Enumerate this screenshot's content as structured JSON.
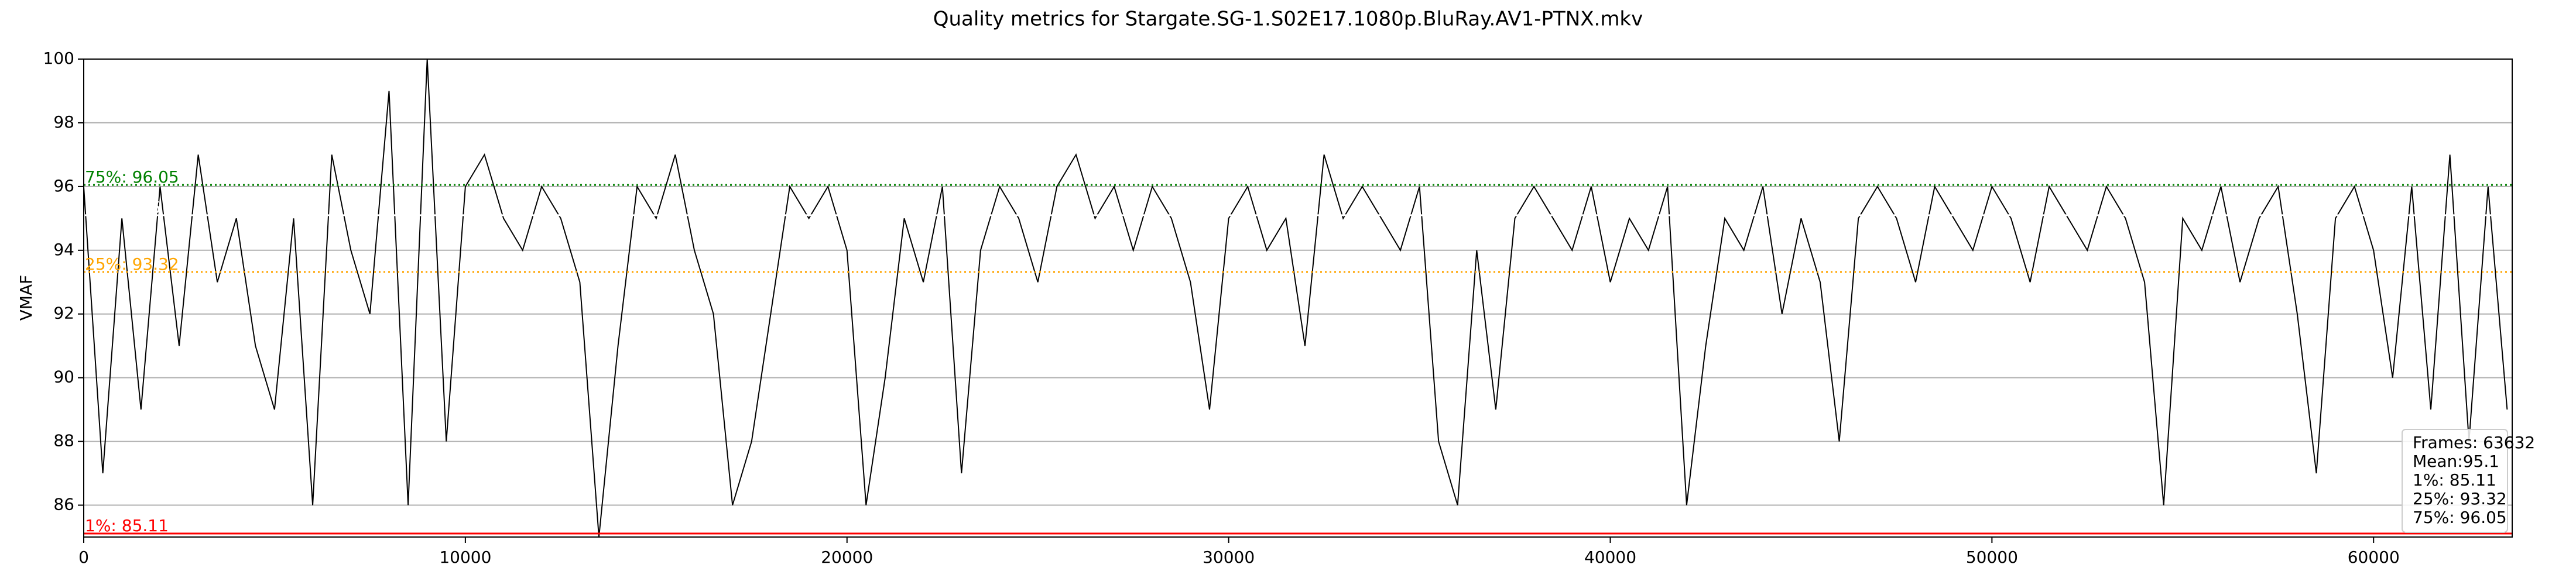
{
  "chart_data": {
    "type": "line",
    "title": "Quality metrics for Stargate.SG-1.S02E17.1080p.BluRay.AV1-PTNX.mkv",
    "ylabel": "VMAF",
    "x": [
      0,
      500,
      1000,
      1500,
      2000,
      2500,
      3000,
      3500,
      4000,
      4500,
      5000,
      5500,
      6000,
      6500,
      7000,
      7500,
      8000,
      8500,
      9000,
      9500,
      10000,
      10500,
      11000,
      11500,
      12000,
      12500,
      13000,
      13500,
      14000,
      14500,
      15000,
      15500,
      16000,
      16500,
      17000,
      17500,
      18000,
      18500,
      19000,
      19500,
      20000,
      20500,
      21000,
      21500,
      22000,
      22500,
      23000,
      23500,
      24000,
      24500,
      25000,
      25500,
      26000,
      26500,
      27000,
      27500,
      28000,
      28500,
      29000,
      29500,
      30000,
      30500,
      31000,
      31500,
      32000,
      32500,
      33000,
      33500,
      34000,
      34500,
      35000,
      35500,
      36000,
      36500,
      37000,
      37500,
      38000,
      38500,
      39000,
      39500,
      40000,
      40500,
      41000,
      41500,
      42000,
      42500,
      43000,
      43500,
      44000,
      44500,
      45000,
      45500,
      46000,
      46500,
      47000,
      47500,
      48000,
      48500,
      49000,
      49500,
      50000,
      50500,
      51000,
      51500,
      52000,
      52500,
      53000,
      53500,
      54000,
      54500,
      55000,
      55500,
      56000,
      56500,
      57000,
      57500,
      58000,
      58500,
      59000,
      59500,
      60000,
      60500,
      61000,
      61500,
      62000,
      62500,
      63000,
      63500
    ],
    "series": [
      {
        "color": "#000000",
        "values": [
          96,
          87,
          95,
          89,
          96,
          91,
          97,
          93,
          95,
          91,
          89,
          95,
          86,
          97,
          94,
          92,
          99,
          86,
          100,
          88,
          96,
          97,
          95,
          94,
          96,
          95,
          93,
          85,
          91,
          96,
          95,
          97,
          94,
          92,
          86,
          88,
          92,
          96,
          95,
          96,
          94,
          86,
          90,
          95,
          93,
          96,
          87,
          94,
          96,
          95,
          93,
          96,
          97,
          95,
          96,
          94,
          96,
          95,
          93,
          89,
          95,
          96,
          94,
          95,
          91,
          97,
          95,
          96,
          95,
          94,
          96,
          88,
          86,
          94,
          89,
          95,
          96,
          95,
          94,
          96,
          93,
          95,
          94,
          96,
          86,
          91,
          95,
          94,
          96,
          92,
          95,
          93,
          88,
          95,
          96,
          95,
          93,
          96,
          95,
          94,
          96,
          95,
          93,
          96,
          95,
          94,
          96,
          95,
          93,
          86,
          95,
          94,
          96,
          93,
          95,
          96,
          92,
          87,
          95,
          96,
          94,
          90,
          96,
          89,
          97,
          88,
          96,
          89
        ]
      }
    ],
    "stats": [
      {
        "label": "1%: 85.11",
        "value": 85.11,
        "color": "#ff0000",
        "style": "solid"
      },
      {
        "label": "Mean: 95",
        "value": 95.1,
        "color": "#ffffff",
        "style": "solid"
      },
      {
        "label": "25%: 93.32",
        "value": 93.32,
        "color": "#ffa500",
        "style": "dotted"
      },
      {
        "label": "75%: 96.05",
        "value": 96.05,
        "color": "#008000",
        "style": "dotted"
      }
    ],
    "legend": [
      "Frames: 63632",
      "Mean:95.1",
      "1%: 85.11",
      "25%: 93.32",
      "75%: 96.05"
    ],
    "legend_position": "lower right",
    "xlim": [
      0,
      63632
    ],
    "xticks": [
      0,
      10000,
      20000,
      30000,
      40000,
      50000,
      60000
    ],
    "ylim": [
      85,
      100
    ],
    "yticks": [
      86,
      88,
      90,
      92,
      94,
      96,
      98,
      100
    ],
    "grid": true
  }
}
